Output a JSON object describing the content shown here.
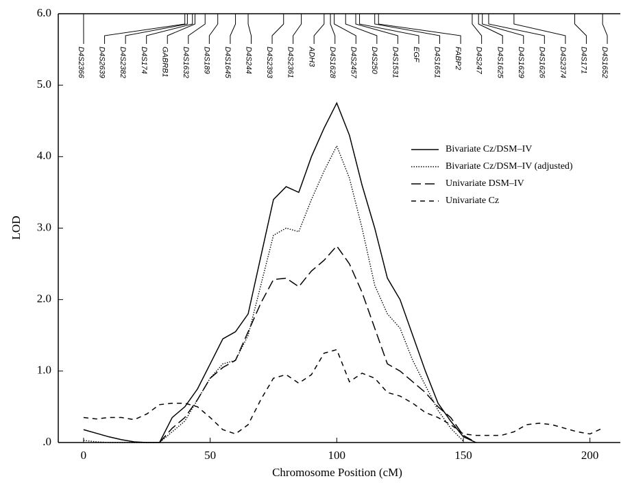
{
  "chart_data": {
    "type": "line",
    "xlabel": "Chromosome Position (cM)",
    "ylabel": "LOD",
    "xlim": [
      -10,
      212
    ],
    "ylim": [
      0,
      6
    ],
    "xticks": [
      0,
      50,
      100,
      150,
      200
    ],
    "yticks": [
      {
        "value": 0,
        "label": ".0"
      },
      {
        "value": 1,
        "label": "1.0"
      },
      {
        "value": 2,
        "label": "2.0"
      },
      {
        "value": 3,
        "label": "3.0"
      },
      {
        "value": 4,
        "label": "4.0"
      },
      {
        "value": 5,
        "label": "5.0"
      },
      {
        "value": 6,
        "label": "6.0"
      }
    ],
    "legend": "right",
    "x": [
      0,
      5,
      10,
      15,
      20,
      25,
      30,
      35,
      40,
      45,
      50,
      55,
      60,
      65,
      70,
      75,
      80,
      85,
      90,
      95,
      100,
      105,
      110,
      115,
      120,
      125,
      130,
      135,
      140,
      145,
      150,
      155,
      160,
      165,
      170,
      175,
      180,
      185,
      190,
      195,
      200,
      205
    ],
    "series": [
      {
        "name": "Bivariate Cz/DSM–IV",
        "color": "#000000",
        "dash": "solid",
        "values": [
          0.18,
          0.13,
          0.08,
          0.04,
          0.01,
          0,
          0,
          0.35,
          0.5,
          0.75,
          1.1,
          1.45,
          1.55,
          1.8,
          2.6,
          3.4,
          3.58,
          3.5,
          4.0,
          4.4,
          4.75,
          4.3,
          3.6,
          3.0,
          2.3,
          2.0,
          1.5,
          1.0,
          0.55,
          0.3,
          0.08,
          0,
          null,
          null,
          null,
          null,
          null,
          null,
          null,
          null,
          null,
          null
        ]
      },
      {
        "name": "Bivariate Cz/DSM–IV (adjusted)",
        "color": "#000000",
        "dash": "dotted",
        "values": [
          0.03,
          0.01,
          0,
          0,
          0,
          0,
          0,
          0.15,
          0.3,
          0.6,
          0.9,
          1.1,
          1.15,
          1.5,
          2.2,
          2.9,
          3.0,
          2.95,
          3.4,
          3.8,
          4.15,
          3.7,
          3.0,
          2.2,
          1.8,
          1.6,
          1.15,
          0.8,
          0.45,
          0.2,
          0.02,
          null,
          null,
          null,
          null,
          null,
          null,
          null,
          null,
          null,
          null,
          null
        ]
      },
      {
        "name": "Univariate DSM–IV",
        "color": "#000000",
        "dash": "long-dash",
        "values": [
          null,
          null,
          null,
          null,
          null,
          null,
          0,
          0.2,
          0.35,
          0.6,
          0.9,
          1.05,
          1.15,
          1.55,
          1.95,
          2.28,
          2.3,
          2.18,
          2.4,
          2.55,
          2.75,
          2.5,
          2.1,
          1.6,
          1.1,
          1.0,
          0.85,
          0.7,
          0.5,
          0.35,
          0.1,
          0,
          null,
          null,
          null,
          null,
          null,
          null,
          null,
          null,
          null,
          null
        ]
      },
      {
        "name": "Univariate Cz",
        "color": "#000000",
        "dash": "dash",
        "values": [
          0.35,
          0.33,
          0.35,
          0.35,
          0.32,
          0.4,
          0.53,
          0.55,
          0.55,
          0.5,
          0.35,
          0.18,
          0.12,
          0.25,
          0.6,
          0.9,
          0.95,
          0.83,
          0.95,
          1.25,
          1.3,
          0.85,
          0.97,
          0.9,
          0.7,
          0.65,
          0.55,
          0.42,
          0.35,
          0.25,
          0.12,
          0.1,
          0.1,
          0.1,
          0.15,
          0.25,
          0.27,
          0.25,
          0.2,
          0.15,
          0.12,
          0.2
        ]
      }
    ],
    "markers": [
      {
        "name": "D4S2366",
        "position": 0
      },
      {
        "name": "D4S2639",
        "position": 40
      },
      {
        "name": "D4S2382",
        "position": 41
      },
      {
        "name": "D4S174",
        "position": 43
      },
      {
        "name": "GABRB1",
        "position": 44
      },
      {
        "name": "D4S1632",
        "position": 48
      },
      {
        "name": "D4S189",
        "position": 53
      },
      {
        "name": "D4S1645",
        "position": 60
      },
      {
        "name": "D4S244",
        "position": 65
      },
      {
        "name": "D4S2393",
        "position": 79
      },
      {
        "name": "D4S2361",
        "position": 86
      },
      {
        "name": "ADH3",
        "position": 95
      },
      {
        "name": "D4S1628",
        "position": 97.5
      },
      {
        "name": "D4S2457",
        "position": 99
      },
      {
        "name": "D4S250",
        "position": 103.5
      },
      {
        "name": "D4S1531",
        "position": 107.5
      },
      {
        "name": "EGF",
        "position": 109
      },
      {
        "name": "D4S1651",
        "position": 115
      },
      {
        "name": "FABP2",
        "position": 116.5
      },
      {
        "name": "D4S247",
        "position": 153.5
      },
      {
        "name": "D4S1625",
        "position": 156
      },
      {
        "name": "D4S1629",
        "position": 157.5
      },
      {
        "name": "D4S1626",
        "position": 160
      },
      {
        "name": "D4S2374",
        "position": 170
      },
      {
        "name": "D4S171",
        "position": 194
      },
      {
        "name": "D4S1652",
        "position": 205
      }
    ]
  }
}
